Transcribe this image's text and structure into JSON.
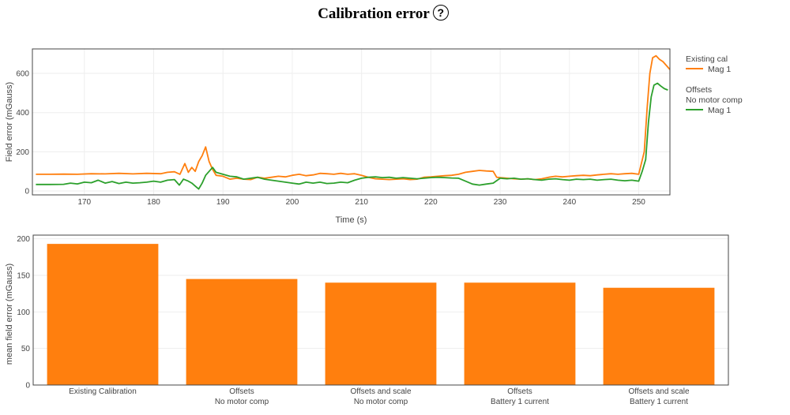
{
  "title": "Calibration error",
  "help_icon": {
    "name": "help-icon",
    "glyph": "?"
  },
  "colors": {
    "orange": "#ff7f0e",
    "green": "#2ca02c",
    "grid": "#eeeeee",
    "axis": "#444444"
  },
  "chart_data": [
    {
      "type": "line",
      "xlabel": "Time (s)",
      "ylabel": "Field error (mGauss)",
      "xlim": [
        162.5,
        254.5
      ],
      "ylim": [
        -20,
        725
      ],
      "xticks": [
        170,
        180,
        190,
        200,
        210,
        220,
        230,
        240,
        250
      ],
      "yticks": [
        0,
        200,
        400,
        600
      ],
      "grid": true,
      "legend_position": "right",
      "legend_groups": [
        {
          "title": [
            "Existing cal"
          ],
          "entry": "Mag 1",
          "color": "#ff7f0e"
        },
        {
          "title": [
            "Offsets",
            "No motor comp"
          ],
          "entry": "Mag 1",
          "color": "#2ca02c"
        }
      ],
      "series": [
        {
          "name": "Mag 1",
          "group": "Existing cal",
          "color": "#ff7f0e",
          "points": [
            [
              163,
              85
            ],
            [
              165,
              85
            ],
            [
              167,
              86
            ],
            [
              169,
              85
            ],
            [
              171,
              88
            ],
            [
              173,
              87
            ],
            [
              175,
              90
            ],
            [
              177,
              87
            ],
            [
              179,
              90
            ],
            [
              181,
              88
            ],
            [
              182,
              95
            ],
            [
              183,
              98
            ],
            [
              183.8,
              85
            ],
            [
              184.5,
              140
            ],
            [
              185,
              95
            ],
            [
              185.5,
              120
            ],
            [
              186,
              100
            ],
            [
              186.5,
              150
            ],
            [
              187,
              180
            ],
            [
              187.5,
              225
            ],
            [
              188,
              150
            ],
            [
              188.5,
              110
            ],
            [
              189,
              80
            ],
            [
              190,
              75
            ],
            [
              191,
              60
            ],
            [
              192,
              65
            ],
            [
              193,
              60
            ],
            [
              194,
              58
            ],
            [
              195,
              70
            ],
            [
              196,
              65
            ],
            [
              197,
              70
            ],
            [
              198,
              75
            ],
            [
              199,
              72
            ],
            [
              200,
              80
            ],
            [
              201,
              85
            ],
            [
              202,
              78
            ],
            [
              203,
              82
            ],
            [
              204,
              90
            ],
            [
              205,
              88
            ],
            [
              206,
              85
            ],
            [
              207,
              90
            ],
            [
              208,
              85
            ],
            [
              209,
              88
            ],
            [
              210,
              80
            ],
            [
              211,
              70
            ],
            [
              212,
              62
            ],
            [
              213,
              60
            ],
            [
              214,
              58
            ],
            [
              215,
              60
            ],
            [
              216,
              62
            ],
            [
              217,
              58
            ],
            [
              218,
              60
            ],
            [
              219,
              70
            ],
            [
              220,
              72
            ],
            [
              221,
              75
            ],
            [
              222,
              78
            ],
            [
              223,
              80
            ],
            [
              224,
              85
            ],
            [
              225,
              95
            ],
            [
              226,
              100
            ],
            [
              227,
              105
            ],
            [
              228,
              102
            ],
            [
              229,
              100
            ],
            [
              229.5,
              70
            ],
            [
              230,
              68
            ],
            [
              231,
              65
            ],
            [
              232,
              62
            ],
            [
              233,
              60
            ],
            [
              234,
              62
            ],
            [
              235,
              58
            ],
            [
              236,
              62
            ],
            [
              237,
              70
            ],
            [
              238,
              75
            ],
            [
              239,
              72
            ],
            [
              240,
              75
            ],
            [
              241,
              78
            ],
            [
              242,
              80
            ],
            [
              243,
              78
            ],
            [
              244,
              82
            ],
            [
              245,
              85
            ],
            [
              246,
              88
            ],
            [
              247,
              85
            ],
            [
              248,
              88
            ],
            [
              249,
              90
            ],
            [
              250,
              85
            ],
            [
              250.8,
              200
            ],
            [
              251.2,
              420
            ],
            [
              251.6,
              600
            ],
            [
              252,
              680
            ],
            [
              252.5,
              690
            ],
            [
              253,
              672
            ],
            [
              253.5,
              660
            ],
            [
              254,
              640
            ],
            [
              254.5,
              620
            ]
          ]
        },
        {
          "name": "Mag 1",
          "group": "Offsets No motor comp",
          "color": "#2ca02c",
          "points": [
            [
              163,
              33
            ],
            [
              165,
              33
            ],
            [
              167,
              34
            ],
            [
              168,
              40
            ],
            [
              169,
              36
            ],
            [
              170,
              45
            ],
            [
              171,
              42
            ],
            [
              172,
              55
            ],
            [
              173,
              40
            ],
            [
              174,
              48
            ],
            [
              175,
              38
            ],
            [
              176,
              45
            ],
            [
              177,
              40
            ],
            [
              178,
              42
            ],
            [
              179,
              45
            ],
            [
              180,
              50
            ],
            [
              181,
              45
            ],
            [
              182,
              55
            ],
            [
              183,
              58
            ],
            [
              183.7,
              30
            ],
            [
              184.3,
              60
            ],
            [
              185,
              50
            ],
            [
              185.5,
              40
            ],
            [
              186,
              25
            ],
            [
              186.5,
              10
            ],
            [
              187,
              40
            ],
            [
              187.5,
              80
            ],
            [
              188,
              100
            ],
            [
              188.5,
              120
            ],
            [
              189,
              95
            ],
            [
              190,
              85
            ],
            [
              191,
              75
            ],
            [
              192,
              72
            ],
            [
              193,
              60
            ],
            [
              194,
              65
            ],
            [
              195,
              70
            ],
            [
              196,
              60
            ],
            [
              197,
              55
            ],
            [
              198,
              50
            ],
            [
              199,
              45
            ],
            [
              200,
              40
            ],
            [
              201,
              35
            ],
            [
              202,
              45
            ],
            [
              203,
              40
            ],
            [
              204,
              45
            ],
            [
              205,
              38
            ],
            [
              206,
              40
            ],
            [
              207,
              45
            ],
            [
              208,
              42
            ],
            [
              209,
              55
            ],
            [
              210,
              65
            ],
            [
              211,
              70
            ],
            [
              212,
              72
            ],
            [
              213,
              68
            ],
            [
              214,
              70
            ],
            [
              215,
              65
            ],
            [
              216,
              68
            ],
            [
              217,
              65
            ],
            [
              218,
              62
            ],
            [
              219,
              65
            ],
            [
              220,
              68
            ],
            [
              221,
              70
            ],
            [
              222,
              68
            ],
            [
              223,
              66
            ],
            [
              224,
              65
            ],
            [
              225,
              50
            ],
            [
              226,
              35
            ],
            [
              227,
              30
            ],
            [
              228,
              35
            ],
            [
              229,
              40
            ],
            [
              230,
              65
            ],
            [
              231,
              62
            ],
            [
              232,
              65
            ],
            [
              233,
              60
            ],
            [
              234,
              62
            ],
            [
              235,
              58
            ],
            [
              236,
              55
            ],
            [
              237,
              60
            ],
            [
              238,
              62
            ],
            [
              239,
              58
            ],
            [
              240,
              55
            ],
            [
              241,
              60
            ],
            [
              242,
              58
            ],
            [
              243,
              60
            ],
            [
              244,
              55
            ],
            [
              245,
              58
            ],
            [
              246,
              60
            ],
            [
              247,
              55
            ],
            [
              248,
              52
            ],
            [
              249,
              55
            ],
            [
              250,
              50
            ],
            [
              250.5,
              100
            ],
            [
              251,
              160
            ],
            [
              251.4,
              350
            ],
            [
              251.8,
              480
            ],
            [
              252.2,
              540
            ],
            [
              252.7,
              550
            ],
            [
              253.2,
              535
            ],
            [
              253.7,
              522
            ],
            [
              254.2,
              515
            ]
          ]
        }
      ]
    },
    {
      "type": "bar",
      "ylabel": "mean field error (mGauss)",
      "ylim": [
        0,
        205
      ],
      "yticks": [
        0,
        50,
        100,
        150,
        200
      ],
      "grid": true,
      "categories": [
        [
          "Existing Calibration"
        ],
        [
          "Offsets",
          "No motor comp"
        ],
        [
          "Offsets and scale",
          "No motor comp"
        ],
        [
          "Offsets",
          "Battery 1 current"
        ],
        [
          "Offsets and scale",
          "Battery 1 current"
        ]
      ],
      "values": [
        193,
        145,
        140,
        140,
        133
      ],
      "color": "#ff7f0e"
    }
  ]
}
